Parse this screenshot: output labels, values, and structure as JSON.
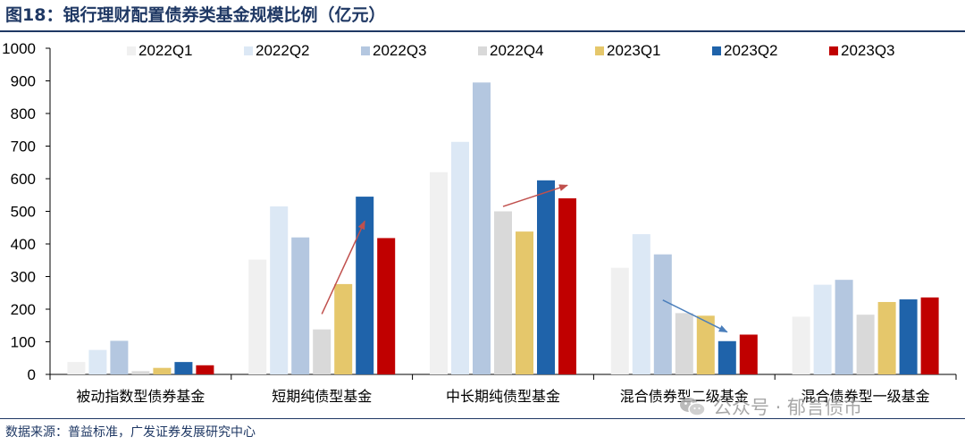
{
  "figure": {
    "title": "图18：银行理财配置债券类基金规模比例（亿元）",
    "source": "数据来源：普益标准，广发证券发展研究中心",
    "watermark": "公众号 · 郁言债市"
  },
  "chart_data": {
    "type": "bar",
    "ylim": [
      0,
      1000
    ],
    "yticks": [
      0,
      100,
      200,
      300,
      400,
      500,
      600,
      700,
      800,
      900,
      1000
    ],
    "grid": false,
    "legend_position": "top",
    "categories": [
      "被动指数型债券基金",
      "短期纯债型基金",
      "中长期纯债型基金",
      "混合债券型二级基金",
      "混合债券型一级基金"
    ],
    "series": [
      {
        "name": "2022Q1",
        "color": "#f0f0f0",
        "values": [
          38,
          352,
          620,
          327,
          177
        ]
      },
      {
        "name": "2022Q2",
        "color": "#dce8f5",
        "values": [
          75,
          515,
          713,
          430,
          275
        ]
      },
      {
        "name": "2022Q3",
        "color": "#b4c7e0",
        "values": [
          103,
          420,
          895,
          368,
          290
        ]
      },
      {
        "name": "2022Q4",
        "color": "#d9d9d9",
        "values": [
          10,
          138,
          500,
          188,
          183
        ]
      },
      {
        "name": "2023Q1",
        "color": "#e5c76b",
        "values": [
          20,
          277,
          438,
          180,
          222
        ]
      },
      {
        "name": "2023Q2",
        "color": "#1f63aa",
        "values": [
          38,
          545,
          595,
          102,
          230
        ]
      },
      {
        "name": "2023Q3",
        "color": "#c00000",
        "values": [
          28,
          418,
          540,
          122,
          236
        ]
      }
    ],
    "annotations": [
      {
        "type": "arrow",
        "color": "#c0504d",
        "category": 1,
        "from_series": 3,
        "from_value": 185,
        "to_series": 5,
        "to_value": 470
      },
      {
        "type": "arrow",
        "color": "#c0504d",
        "category": 2,
        "from_series": 3,
        "from_value": 515,
        "to_series": 6,
        "to_value": 580
      },
      {
        "type": "arrow",
        "color": "#4a7ebb",
        "category": 3,
        "from_series": 2,
        "from_value": 228,
        "to_series": 5,
        "to_value": 130
      }
    ]
  }
}
